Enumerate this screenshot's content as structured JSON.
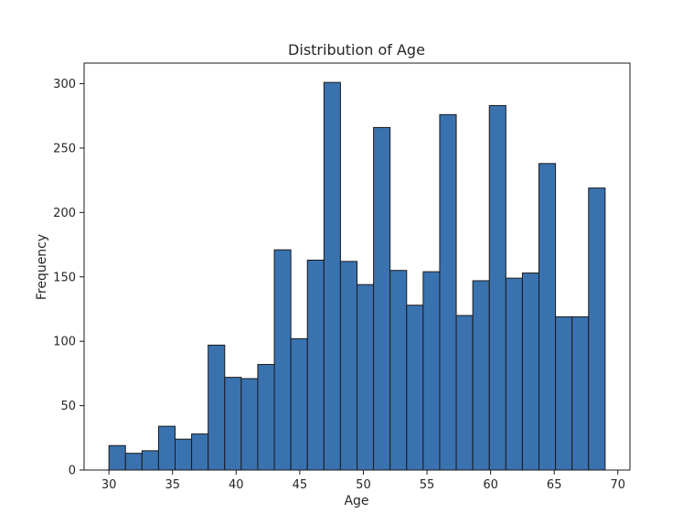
{
  "chart_data": {
    "type": "bar",
    "subtype": "histogram",
    "title": "Distribution of Age",
    "xlabel": "Age",
    "ylabel": "Frequency",
    "xlim": [
      28.05,
      70.95
    ],
    "ylim": [
      0,
      316
    ],
    "xticks": [
      30,
      35,
      40,
      45,
      50,
      55,
      60,
      65,
      70
    ],
    "yticks": [
      0,
      50,
      100,
      150,
      200,
      250,
      300
    ],
    "bin_edges": [
      30,
      31.3,
      32.6,
      33.9,
      35.2,
      36.5,
      37.8,
      39.1,
      40.4,
      41.7,
      43.0,
      44.3,
      45.6,
      46.9,
      48.2,
      49.5,
      50.8,
      52.1,
      53.4,
      54.7,
      56.0,
      57.3,
      58.6,
      59.9,
      61.2,
      62.5,
      63.8,
      65.1,
      66.4,
      67.7,
      69.0
    ],
    "values": [
      19,
      13,
      15,
      34,
      24,
      28,
      97,
      72,
      71,
      82,
      171,
      102,
      163,
      301,
      162,
      144,
      266,
      155,
      128,
      154,
      276,
      120,
      147,
      283,
      149,
      153,
      238,
      119,
      119,
      219
    ],
    "bar_color": "#3a72b0",
    "edge_color": "#1a1a1a",
    "grid": false,
    "legend": "none"
  }
}
